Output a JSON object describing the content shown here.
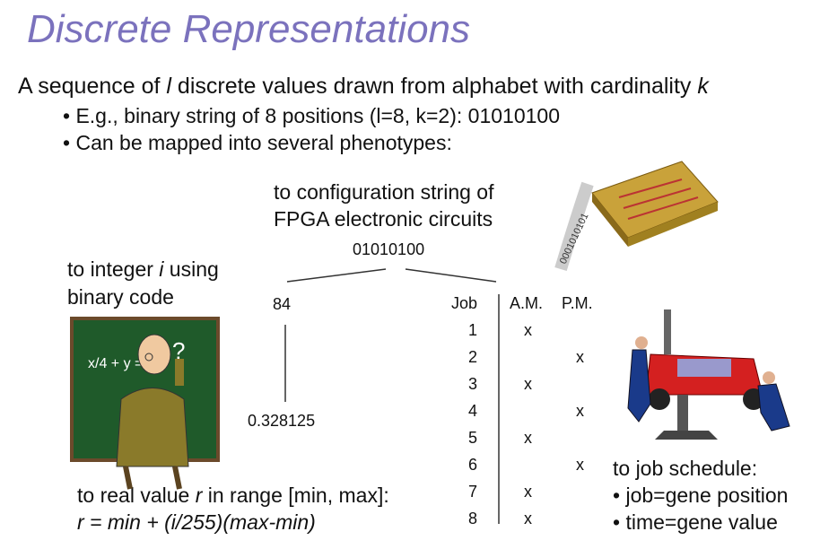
{
  "slide": {
    "title": "Discrete Representations",
    "intro_pre": "A sequence of ",
    "intro_var": "l",
    "intro_mid": " discrete values drawn from alphabet with cardinality ",
    "intro_k": "k",
    "bullets": [
      "E.g., binary string of 8 positions (l=8, k=2): 01010100",
      "Can be mapped into several phenotypes:"
    ]
  },
  "fpga": {
    "line1": "to configuration string of",
    "line2": "FPGA electronic circuits"
  },
  "root_string": "01010100",
  "integer": {
    "line1_pre": "to integer ",
    "var": "i",
    "line1_post": " using",
    "line2": "binary code",
    "value": "84"
  },
  "real": {
    "value": "0.328125",
    "line1_pre": "to real value ",
    "var": "r",
    "line1_post": " in range [min, max]:",
    "formula": "r = min + (i/255)(max-min)"
  },
  "schedule": {
    "headers": [
      "Job",
      "A.M.",
      "P.M."
    ],
    "rows": [
      {
        "job": "1",
        "am": "x",
        "pm": ""
      },
      {
        "job": "2",
        "am": "",
        "pm": "x"
      },
      {
        "job": "3",
        "am": "x",
        "pm": ""
      },
      {
        "job": "4",
        "am": "",
        "pm": "x"
      },
      {
        "job": "5",
        "am": "x",
        "pm": ""
      },
      {
        "job": "6",
        "am": "",
        "pm": "x"
      },
      {
        "job": "7",
        "am": "x",
        "pm": ""
      },
      {
        "job": "8",
        "am": "x",
        "pm": ""
      }
    ],
    "label": "to job schedule:",
    "bullets": [
      "job=gene position",
      "time=gene value"
    ]
  },
  "chip_bits": "0001010101",
  "board_formula": "x/4 + y ="
}
